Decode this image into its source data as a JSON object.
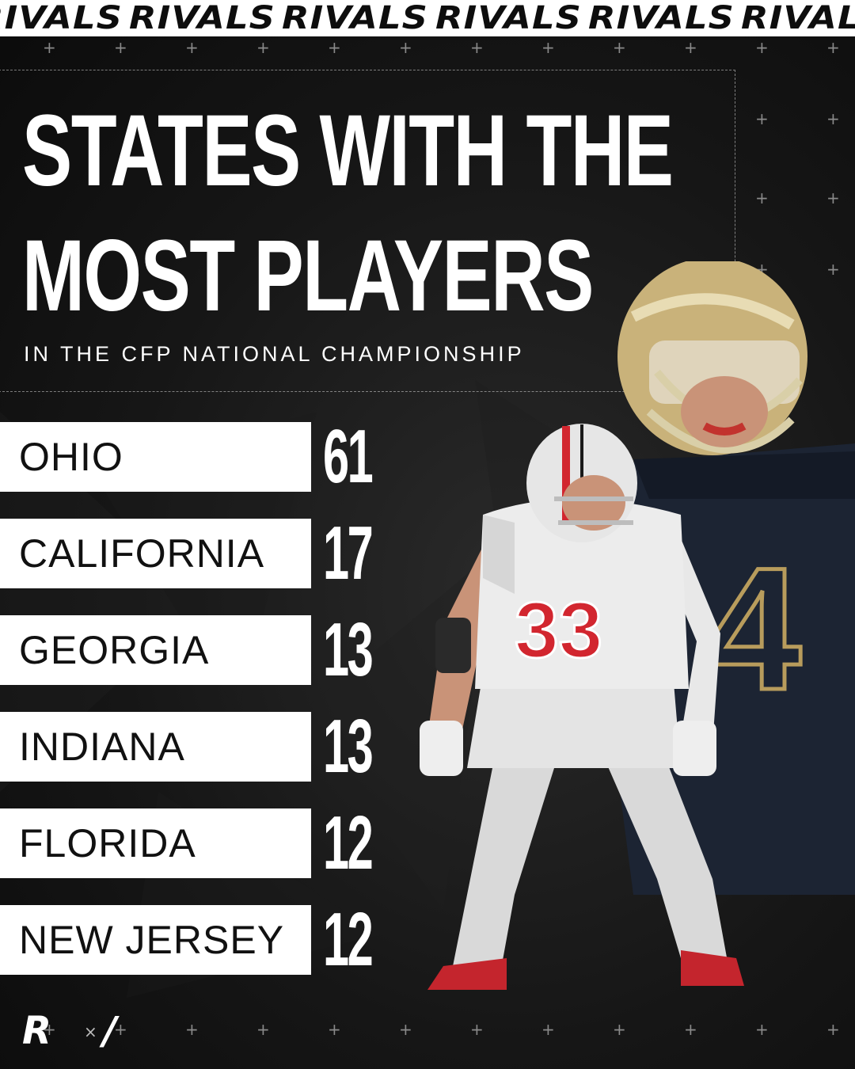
{
  "banner": {
    "word": "RIVALS",
    "repeats": [
      "RIVALS",
      "RIVALS",
      "RIVALS",
      "RIVALS",
      "RIVALS",
      "RIVALS"
    ]
  },
  "title": {
    "line1": "STATES WITH THE",
    "line2": "MOST PLAYERS",
    "subtitle": "IN THE CFP NATIONAL CHAMPIONSHIP"
  },
  "rankings": [
    {
      "state": "OHIO",
      "count": "61"
    },
    {
      "state": "CALIFORNIA",
      "count": "17"
    },
    {
      "state": "GEORGIA",
      "count": "13"
    },
    {
      "state": "INDIANA",
      "count": "13"
    },
    {
      "state": "FLORIDA",
      "count": "12"
    },
    {
      "state": "NEW JERSEY",
      "count": "12"
    }
  ],
  "players": {
    "front_jersey_number": "33",
    "back_jersey_number": "4",
    "front_helmet_color": "#e6e6e6",
    "back_helmet_color": "#c9b27a",
    "front_accent": "#d2262f",
    "back_jersey_color": "#1c2433"
  },
  "logo": {
    "letter": "R",
    "separator": "×",
    "mark": "/"
  },
  "colors": {
    "background": "#0d0d0d",
    "banner": "#ffffff",
    "row_fill": "#ffffff",
    "text_light": "#ffffff",
    "text_dark": "#111111"
  }
}
